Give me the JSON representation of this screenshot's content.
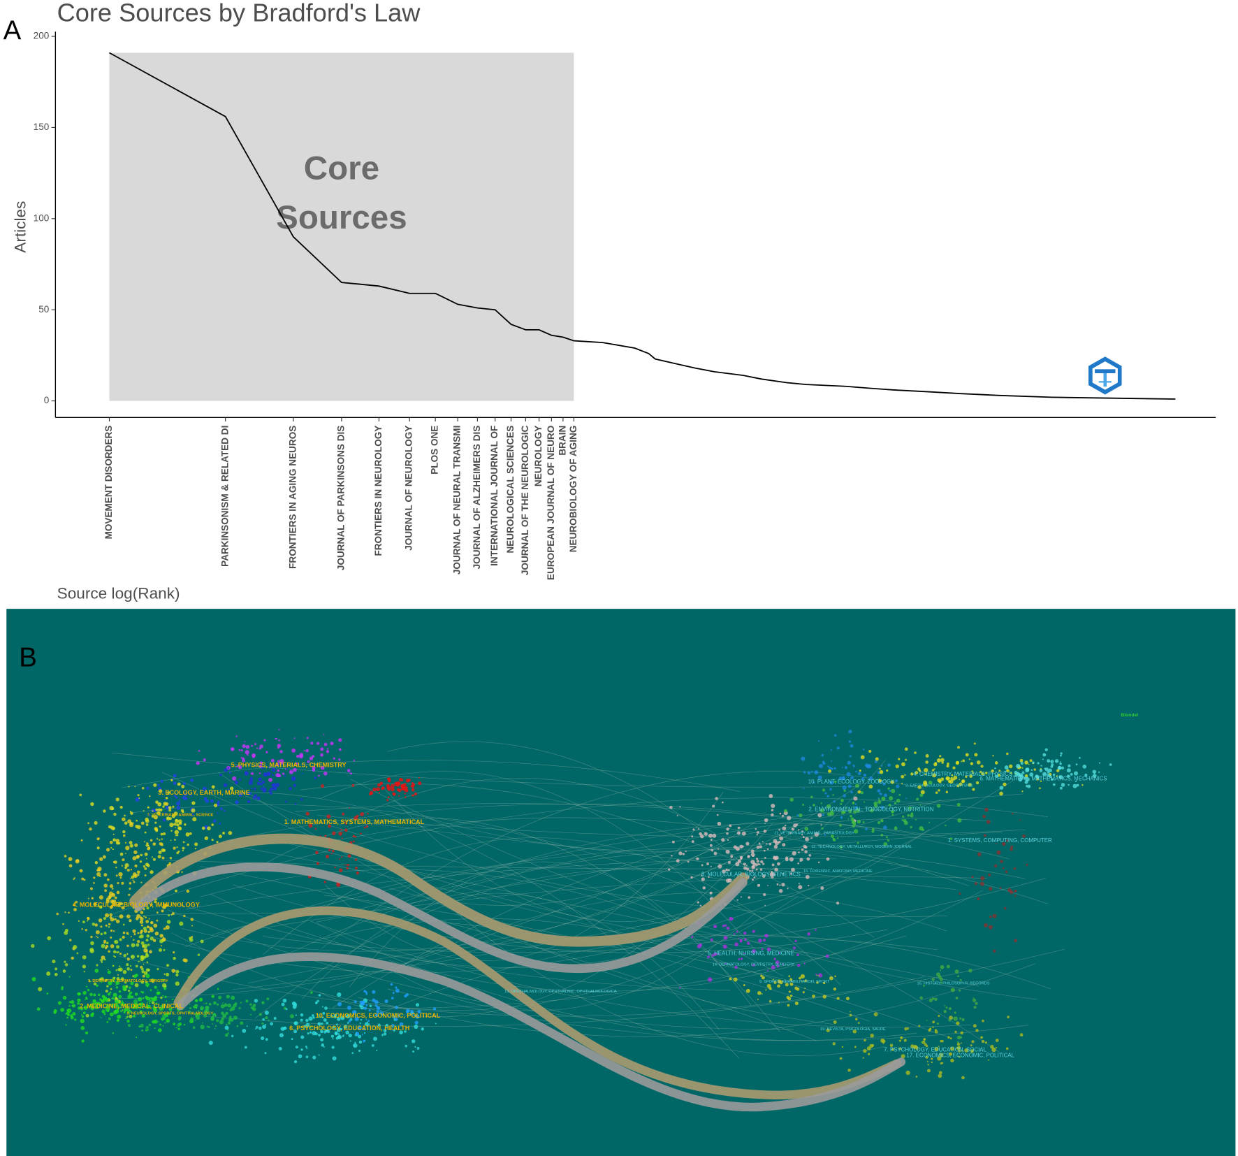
{
  "panel_labels": {
    "a": "A",
    "b": "B"
  },
  "chart_data": {
    "type": "line",
    "title": "Core Sources by Bradford's Law",
    "x_label": "Source log(Rank)",
    "y_label": "Articles",
    "annotation_lines": [
      "Core",
      "Sources"
    ],
    "x_scale": "log",
    "color": "#000000",
    "core_color": "#d9d9d9",
    "x": [
      1,
      2,
      3,
      4,
      5,
      6,
      7,
      8,
      9,
      10,
      11,
      12,
      13,
      14,
      15,
      16,
      19,
      23,
      25,
      26,
      30,
      33,
      37,
      44,
      49,
      57,
      64,
      81,
      93,
      108,
      133,
      161,
      203,
      277,
      580
    ],
    "values": [
      191,
      156,
      90,
      65,
      63,
      59,
      59,
      53,
      51,
      50,
      42,
      39,
      39,
      36,
      35,
      33,
      32,
      29,
      26,
      23,
      20,
      18,
      16,
      14,
      12,
      10,
      9,
      8,
      7,
      6,
      5,
      4,
      3,
      2,
      1
    ],
    "xlim": [
      0.725,
      738
    ],
    "xticks": [
      {
        "value": 1,
        "label": "MOVEMENT DISORDERS"
      },
      {
        "value": 2,
        "label": "PARKINSONISM & RELATED DI"
      },
      {
        "value": 3,
        "label": "FRONTIERS IN AGING NEUROS"
      },
      {
        "value": 4,
        "label": "JOURNAL OF PARKINSONS DIS"
      },
      {
        "value": 5,
        "label": "FRONTIERS IN NEUROLOGY"
      },
      {
        "value": 6,
        "label": "JOURNAL OF NEUROLOGY"
      },
      {
        "value": 7,
        "label": "PLOS ONE"
      },
      {
        "value": 8,
        "label": "JOURNAL OF NEURAL TRANSMI"
      },
      {
        "value": 9,
        "label": "JOURNAL OF ALZHEIMERS DIS"
      },
      {
        "value": 10,
        "label": "INTERNATIONAL JOURNAL OF"
      },
      {
        "value": 11,
        "label": "NEUROLOGICAL SCIENCES"
      },
      {
        "value": 12,
        "label": "JOURNAL OF THE NEUROLOGIC"
      },
      {
        "value": 13,
        "label": "NEUROLOGY"
      },
      {
        "value": 14,
        "label": "EUROPEAN JOURNAL OF NEURO"
      },
      {
        "value": 15,
        "label": "BRAIN"
      },
      {
        "value": 16,
        "label": "NEUROBIOLOGY OF AGING"
      }
    ],
    "ylim": [
      -9.1,
      202.6
    ],
    "yticks": [
      0,
      50,
      100,
      150,
      200
    ]
  },
  "panel_b": {
    "watermark": "Blondel",
    "left_labels": [
      "5. PHYSICS, MATERIALS, CHEMISTRY",
      "3. ECOLOGY, EARTH, MARINE",
      "7. VETERINARY, ANIMAL, SCIENCE",
      "1. MATHEMATICS, SYSTEMS, MATHEMATICAL",
      "4. MOLECULAR, BIOLOGY, IMMUNOLOGY",
      "9. DENTISTRY, DERMATOLOGY, SURGERY",
      "2. MEDICINE, MEDICAL, CLINICAL",
      "8. NEUROLOGY, SPORTS, OPHTHALMOLOGY",
      "10. ECONOMICS, ECONOMIC, POLITICAL",
      "6. PSYCHOLOGY, EDUCATION, HEALTH"
    ],
    "right_labels": [
      "10. PLANT, ECOLOGY, ZOOLOGY",
      "4. CHEMISTRY, MATERIALS, PHYSICS",
      "3. EARTH, GEOLOGY, GEOPHYSICS",
      "6. MATHEMATICAL, MATHEMATICS, MECHANICS",
      "2. ENVIRONMENTAL, TOXICOLOGY, NUTRITION",
      "11. VETERINARY, ANIMAL, PARASITOLOGY",
      "12. TECHNOLOGY, METALLURGY, MODERN JOURNAL",
      "1. SYSTEMS, COMPUTING, COMPUTER",
      "8. MOLECULAR, BIOLOGY, GENETICS",
      "15. FORENSIC, ANATOMY, MEDICINE",
      "5. HEALTH, NURSING, MEDICINE",
      "14. DERMATOLOGY, DENTISTRY, SURGERY",
      "9. SPORTS, REHABILITATION, SPORT",
      "16. HISTORY, PHILOSOPHY, RECORDS",
      "13. OPHTHALMOLOGY, OPHTHALMIC, OPHTHALMOLOGICA",
      "19. REVISTA, PSICOLOGIA, SAUDE",
      "7. PSYCHOLOGY, EDUCATION, SOCIAL",
      "17. ECONOMICS, ECONOMIC, POLITICAL"
    ]
  }
}
